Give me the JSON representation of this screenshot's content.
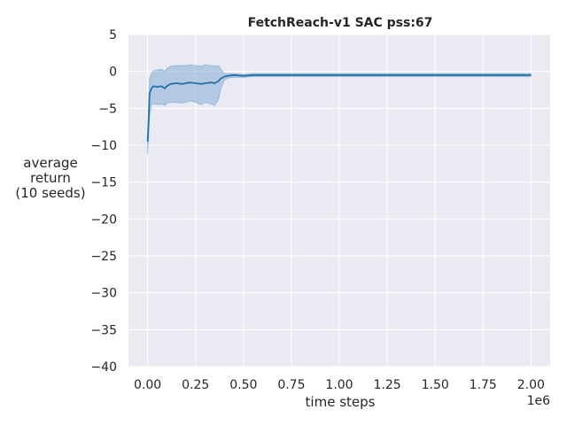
{
  "chart_data": {
    "type": "line",
    "title": "FetchReach-v1 SAC pss:67",
    "xlabel": "time steps",
    "ylabel_lines": [
      "average",
      "return",
      "(10 seeds)"
    ],
    "x_offset_label": "1e6",
    "xlim": [
      -0.1,
      2.1
    ],
    "ylim": [
      -40,
      5
    ],
    "x_ticks": [
      0.0,
      0.25,
      0.5,
      0.75,
      1.0,
      1.25,
      1.5,
      1.75,
      2.0
    ],
    "x_tick_labels": [
      "0.00",
      "0.25",
      "0.50",
      "0.75",
      "1.00",
      "1.25",
      "1.50",
      "1.75",
      "2.00"
    ],
    "y_ticks": [
      5,
      0,
      -5,
      -10,
      -15,
      -20,
      -25,
      -30,
      -35,
      -40
    ],
    "y_tick_labels": [
      "5",
      "0",
      "−5",
      "−10",
      "−15",
      "−20",
      "−25",
      "−30",
      "−35",
      "−40"
    ],
    "grid": true,
    "background": "#eaeaf2",
    "line_color": "#2471a8",
    "band_color": "#6e9fd1",
    "series": [
      {
        "x": [
          0.0,
          0.005,
          0.01,
          0.02,
          0.03,
          0.05,
          0.07,
          0.09,
          0.1,
          0.12,
          0.15,
          0.18,
          0.2,
          0.22,
          0.25,
          0.28,
          0.3,
          0.33,
          0.35,
          0.37,
          0.38,
          0.4,
          0.42,
          0.45,
          0.5,
          0.55,
          0.6,
          0.7,
          0.8,
          0.9,
          1.0,
          1.1,
          1.2,
          1.3,
          1.4,
          1.5,
          1.6,
          1.7,
          1.8,
          1.9,
          2.0
        ],
        "y": [
          -9.5,
          -7.0,
          -3.0,
          -2.3,
          -2.0,
          -2.1,
          -2.0,
          -2.3,
          -2.0,
          -1.7,
          -1.6,
          -1.7,
          -1.6,
          -1.5,
          -1.6,
          -1.7,
          -1.6,
          -1.5,
          -1.6,
          -1.3,
          -1.0,
          -0.7,
          -0.6,
          -0.5,
          -0.6,
          -0.5,
          -0.5,
          -0.5,
          -0.5,
          -0.5,
          -0.5,
          -0.5,
          -0.5,
          -0.5,
          -0.5,
          -0.5,
          -0.5,
          -0.5,
          -0.5,
          -0.5,
          -0.5
        ],
        "lower": [
          -11.2,
          -9.0,
          -6.0,
          -4.5,
          -4.4,
          -4.5,
          -4.4,
          -4.6,
          -4.3,
          -4.2,
          -4.2,
          -4.3,
          -4.2,
          -4.0,
          -4.2,
          -4.5,
          -4.2,
          -4.4,
          -4.6,
          -3.8,
          -2.5,
          -1.2,
          -0.9,
          -0.8,
          -0.8,
          -0.7,
          -0.7,
          -0.7,
          -0.7,
          -0.7,
          -0.7,
          -0.7,
          -0.7,
          -0.7,
          -0.7,
          -0.7,
          -0.7,
          -0.7,
          -0.7,
          -0.7,
          -0.7
        ],
        "upper": [
          -8.0,
          -5.0,
          -1.0,
          -0.3,
          0.1,
          0.2,
          0.3,
          0.0,
          0.4,
          0.7,
          0.8,
          0.8,
          0.8,
          0.9,
          0.8,
          0.7,
          0.9,
          0.8,
          0.7,
          0.8,
          0.4,
          -0.3,
          -0.3,
          -0.3,
          -0.4,
          -0.3,
          -0.3,
          -0.3,
          -0.3,
          -0.3,
          -0.3,
          -0.3,
          -0.3,
          -0.3,
          -0.3,
          -0.3,
          -0.3,
          -0.3,
          -0.3,
          -0.3,
          -0.3
        ]
      }
    ]
  }
}
